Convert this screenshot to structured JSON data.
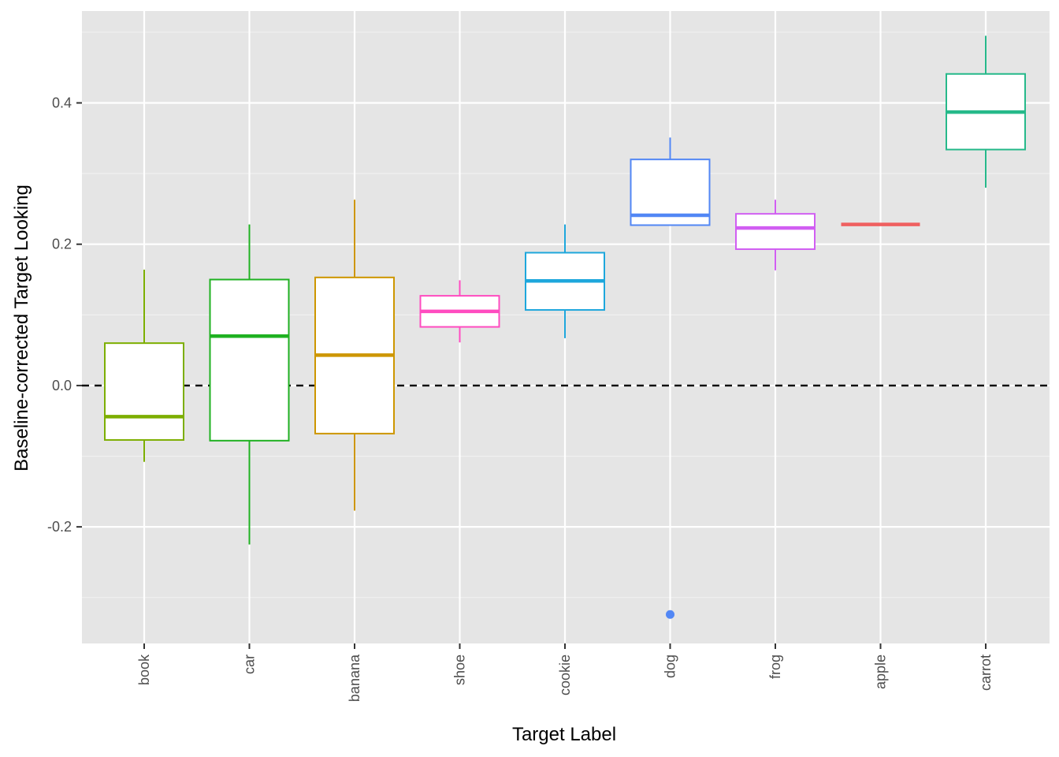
{
  "chart_data": {
    "type": "box",
    "xlabel": "Target Label",
    "ylabel": "Baseline-corrected Target Looking",
    "ylim": [
      -0.365,
      0.53
    ],
    "y_ticks": [
      {
        "value": -0.2,
        "label": "-0.2"
      },
      {
        "value": 0.0,
        "label": "0.0"
      },
      {
        "value": 0.2,
        "label": "0.2"
      },
      {
        "value": 0.4,
        "label": "0.4"
      }
    ],
    "reference_line": {
      "y": 0,
      "style": "dashed",
      "color": "#000000"
    },
    "grid": true,
    "legend": "none",
    "background": "#e5e5e5",
    "categories": [
      "book",
      "car",
      "banana",
      "shoe",
      "cookie",
      "dog",
      "frog",
      "apple",
      "carrot"
    ],
    "boxes": [
      {
        "category": "book",
        "color": "#7cae00",
        "lower_whisker": -0.108,
        "q1": -0.077,
        "median": -0.044,
        "q3": 0.06,
        "upper_whisker": 0.164,
        "outliers": []
      },
      {
        "category": "car",
        "color": "#1fb121",
        "lower_whisker": -0.225,
        "q1": -0.078,
        "median": 0.07,
        "q3": 0.15,
        "upper_whisker": 0.228,
        "outliers": []
      },
      {
        "category": "banana",
        "color": "#cd9600",
        "lower_whisker": -0.177,
        "q1": -0.068,
        "median": 0.043,
        "q3": 0.153,
        "upper_whisker": 0.263,
        "outliers": []
      },
      {
        "category": "shoe",
        "color": "#ff4cc0",
        "lower_whisker": 0.061,
        "q1": 0.083,
        "median": 0.105,
        "q3": 0.127,
        "upper_whisker": 0.149,
        "outliers": []
      },
      {
        "category": "cookie",
        "color": "#1ea7dc",
        "lower_whisker": 0.067,
        "q1": 0.107,
        "median": 0.148,
        "q3": 0.188,
        "upper_whisker": 0.228,
        "outliers": []
      },
      {
        "category": "dog",
        "color": "#5287f5",
        "lower_whisker": 0.227,
        "q1": 0.227,
        "median": 0.241,
        "q3": 0.32,
        "upper_whisker": 0.351,
        "outliers": [
          -0.324
        ]
      },
      {
        "category": "frog",
        "color": "#d15ef2",
        "lower_whisker": 0.163,
        "q1": 0.193,
        "median": 0.223,
        "q3": 0.243,
        "upper_whisker": 0.263,
        "outliers": []
      },
      {
        "category": "apple",
        "color": "#ef6060",
        "lower_whisker": 0.228,
        "q1": 0.228,
        "median": 0.228,
        "q3": 0.228,
        "upper_whisker": 0.228,
        "outliers": []
      },
      {
        "category": "carrot",
        "color": "#26b98a",
        "lower_whisker": 0.28,
        "q1": 0.334,
        "median": 0.387,
        "q3": 0.441,
        "upper_whisker": 0.495,
        "outliers": []
      }
    ]
  }
}
